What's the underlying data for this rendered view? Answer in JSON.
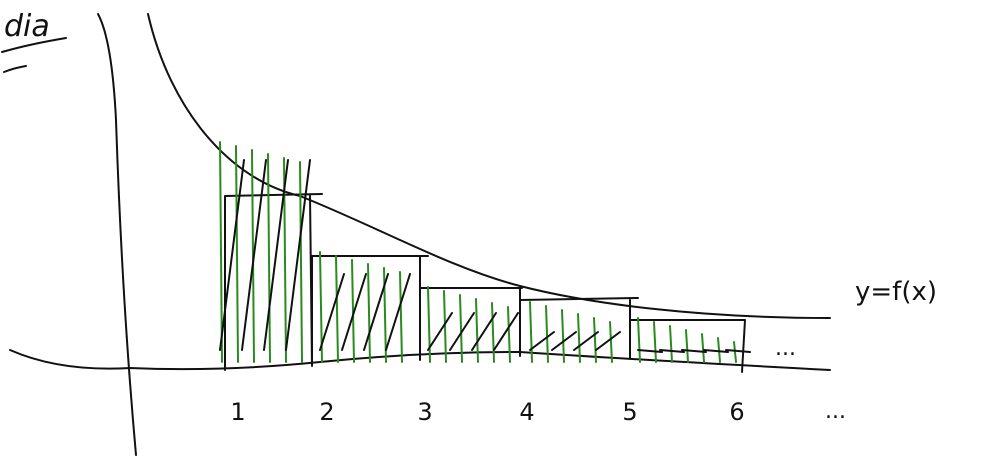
{
  "corner_text": "dia",
  "curve_label": "y=f(x)",
  "x_labels": [
    "1",
    "2",
    "3",
    "4",
    "5",
    "6"
  ],
  "ellipsis": [
    "...",
    "..."
  ]
}
